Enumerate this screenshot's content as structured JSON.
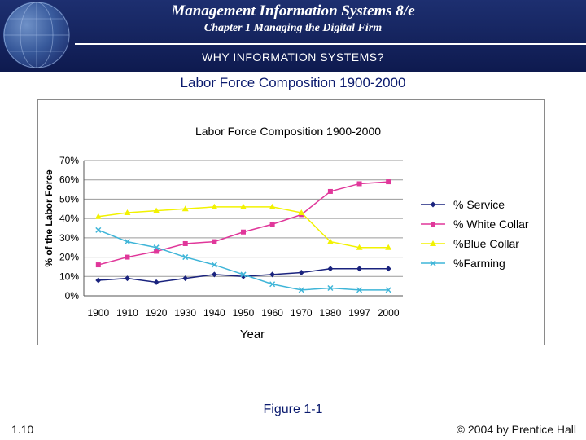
{
  "header": {
    "book_title": "Management Information Systems 8/e",
    "chapter_title": "Chapter 1 Managing the Digital Firm",
    "section_title": "WHY INFORMATION SYSTEMS?"
  },
  "slide": {
    "title": "Labor Force Composition 1900-2000",
    "figure_caption": "Figure 1-1",
    "slide_number": "1.10",
    "copyright": "© 2004 by Prentice Hall"
  },
  "colors": {
    "header_bg": "#162565",
    "title_blue": "#0a1a6e",
    "service": "#1a237e",
    "white_collar": "#e0379a",
    "blue_collar": "#f2f200",
    "farming": "#3fb5d8"
  },
  "chart_data": {
    "type": "line",
    "title": "Labor Force Composition 1900-2000",
    "xlabel": "Year",
    "ylabel": "% of the Labor Force",
    "categories": [
      "1900",
      "1910",
      "1920",
      "1930",
      "1940",
      "1950",
      "1960",
      "1970",
      "1980",
      "1997",
      "2000"
    ],
    "ylim": [
      0,
      70
    ],
    "yticks": [
      "0%",
      "10%",
      "20%",
      "30%",
      "40%",
      "50%",
      "60%",
      "70%"
    ],
    "grid": true,
    "legend": "right",
    "series": [
      {
        "name": "% Service",
        "marker": "diamond",
        "values": [
          8,
          9,
          7,
          9,
          11,
          10,
          11,
          12,
          14,
          14,
          14
        ]
      },
      {
        "name": "% White Collar",
        "marker": "square",
        "values": [
          16,
          20,
          23,
          27,
          28,
          33,
          37,
          42,
          54,
          58,
          59
        ]
      },
      {
        "name": "%Blue Collar",
        "marker": "triangle",
        "values": [
          41,
          43,
          44,
          45,
          46,
          46,
          46,
          43,
          28,
          25,
          25
        ]
      },
      {
        "name": "%Farming",
        "marker": "x",
        "values": [
          34,
          28,
          25,
          20,
          16,
          11,
          6,
          3,
          4,
          3,
          3
        ]
      }
    ]
  }
}
